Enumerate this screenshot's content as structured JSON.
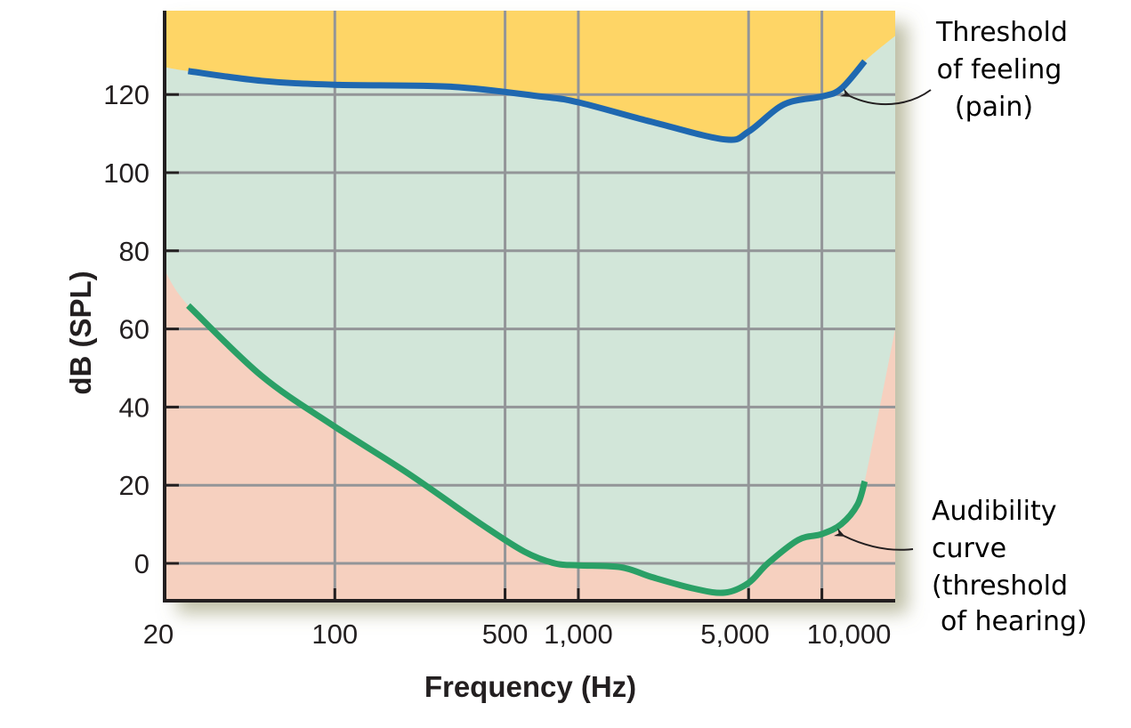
{
  "chart_data": {
    "type": "line",
    "title": "",
    "xlabel": "Frequency (Hz)",
    "ylabel": "dB (SPL)",
    "x_scale": "log",
    "xlim": [
      20,
      20000
    ],
    "ylim": [
      -10,
      141
    ],
    "grid": true,
    "x_ticks": [
      20,
      100,
      500,
      1000,
      5000,
      10000
    ],
    "x_tick_labels": [
      "20",
      "100",
      "500",
      "1,000",
      "5,000",
      "10,000"
    ],
    "y_ticks": [
      0,
      20,
      40,
      60,
      80,
      100,
      120
    ],
    "y_tick_labels": [
      "0",
      "20",
      "40",
      "60",
      "80",
      "100",
      "120"
    ],
    "series": [
      {
        "name": "Threshold of feeling (pain)",
        "color": "#1f68b0",
        "points": [
          [
            25,
            126
          ],
          [
            50,
            123.5
          ],
          [
            100,
            122.5
          ],
          [
            300,
            122
          ],
          [
            700,
            119.5
          ],
          [
            1000,
            118
          ],
          [
            2000,
            113
          ],
          [
            4000,
            108.5
          ],
          [
            5000,
            110.5
          ],
          [
            7000,
            117.5
          ],
          [
            10000,
            119.5
          ],
          [
            12000,
            121.5
          ],
          [
            15000,
            128.5
          ]
        ]
      },
      {
        "name": "Audibility curve (threshold of hearing)",
        "color": "#2aa066",
        "points": [
          [
            25,
            66
          ],
          [
            50,
            48
          ],
          [
            100,
            35
          ],
          [
            200,
            23
          ],
          [
            400,
            10
          ],
          [
            600,
            3
          ],
          [
            800,
            0
          ],
          [
            1000,
            -0.5
          ],
          [
            1500,
            -1
          ],
          [
            2000,
            -3.5
          ],
          [
            3000,
            -6.5
          ],
          [
            4000,
            -7.5
          ],
          [
            5000,
            -5
          ],
          [
            6000,
            0
          ],
          [
            8000,
            6
          ],
          [
            10000,
            7.5
          ],
          [
            12000,
            10
          ],
          [
            14000,
            15
          ],
          [
            15000,
            21
          ]
        ]
      }
    ],
    "regions": [
      {
        "name": "above-threshold-of-feeling",
        "color": "#fed566"
      },
      {
        "name": "audible-region",
        "color": "#d2e6d9"
      },
      {
        "name": "below-audibility",
        "color": "#f6d0bf"
      }
    ],
    "region_boundaries": {
      "upper": [
        [
          20,
          127
        ],
        [
          25,
          126
        ],
        [
          50,
          123.5
        ],
        [
          100,
          122.5
        ],
        [
          300,
          122
        ],
        [
          700,
          119.5
        ],
        [
          1000,
          118
        ],
        [
          2000,
          113
        ],
        [
          4000,
          108.5
        ],
        [
          5000,
          110.5
        ],
        [
          7000,
          117.5
        ],
        [
          10000,
          119.5
        ],
        [
          12000,
          121.5
        ],
        [
          15000,
          128.5
        ],
        [
          20000,
          135
        ]
      ],
      "lower": [
        [
          20,
          75
        ],
        [
          25,
          66
        ],
        [
          50,
          48
        ],
        [
          100,
          35
        ],
        [
          200,
          23
        ],
        [
          400,
          10
        ],
        [
          600,
          3
        ],
        [
          800,
          0
        ],
        [
          1000,
          -0.5
        ],
        [
          1500,
          -1
        ],
        [
          2000,
          -3.5
        ],
        [
          3000,
          -6.5
        ],
        [
          4000,
          -7.5
        ],
        [
          5000,
          -5
        ],
        [
          6000,
          0
        ],
        [
          8000,
          6
        ],
        [
          10000,
          7.5
        ],
        [
          12000,
          10
        ],
        [
          14000,
          15
        ],
        [
          15000,
          21
        ],
        [
          20000,
          60
        ]
      ]
    },
    "annotations": [
      {
        "lines": [
          "Threshold",
          "of feeling",
          "(pain)"
        ],
        "points_to": [
          10500,
          120
        ]
      },
      {
        "lines": [
          "Audibility",
          "curve",
          "(threshold",
          "of hearing)"
        ],
        "points_to": [
          10500,
          7
        ]
      }
    ]
  },
  "labels": {
    "y_axis_title": "dB (SPL)",
    "x_axis_title": "Frequency (Hz)",
    "pain_annotation": [
      "Threshold",
      "of feeling",
      "(pain)"
    ],
    "hearing_annotation": [
      "Audibility",
      "curve",
      "(threshold",
      "of hearing)"
    ]
  },
  "colors": {
    "pain_region": "#fed566",
    "audible_region": "#d2e6d9",
    "inaudible_region": "#f6d0bf",
    "pain_curve": "#1f68b0",
    "hearing_curve": "#2aa066",
    "grid": "#939598",
    "axis": "#231f20"
  }
}
